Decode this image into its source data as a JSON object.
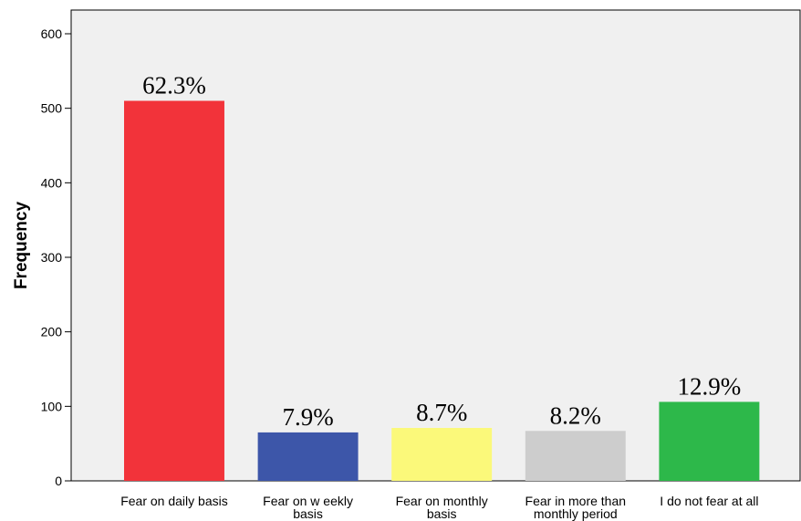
{
  "chart_data": {
    "type": "bar",
    "categories": [
      [
        "Fear on daily basis"
      ],
      [
        "Fear on w eekly",
        "basis"
      ],
      [
        "Fear on monthly",
        "basis"
      ],
      [
        "Fear in more than",
        "monthly period"
      ],
      [
        "I do not fear at all"
      ]
    ],
    "values": [
      510,
      65,
      71,
      67,
      106
    ],
    "data_labels": [
      "62.3%",
      "7.9%",
      "8.7%",
      "8.2%",
      "12.9%"
    ],
    "colors": [
      "#f2333a",
      "#3d56a9",
      "#fbf97a",
      "#cdcdcd",
      "#2db84a"
    ],
    "ylabel": "Frequency",
    "ylim": [
      0,
      600
    ],
    "yticks": [
      0,
      100,
      200,
      300,
      400,
      500,
      600
    ],
    "grid": false,
    "plot_background": "#f0f0f0"
  }
}
